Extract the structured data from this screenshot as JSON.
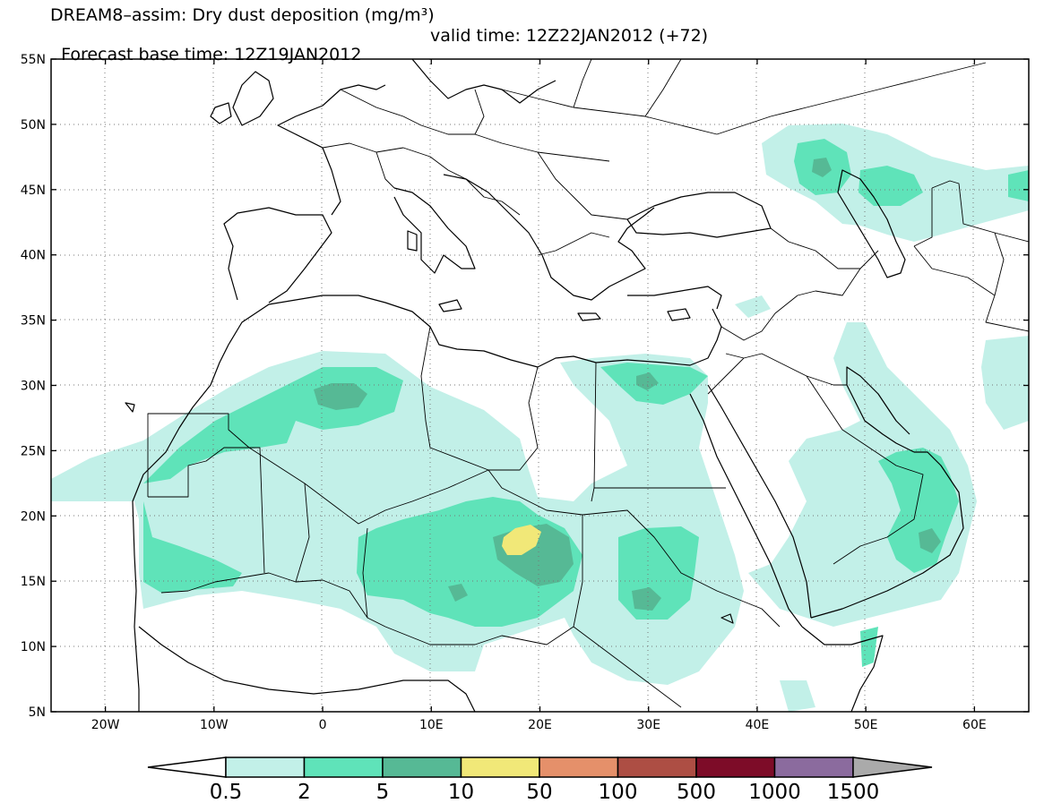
{
  "title": {
    "line1": "DREAM8–assim: Dry dust deposition (mg/m³)",
    "base_time": "Forecast base time: 12Z19JAN2012",
    "valid_time": "valid time: 12Z22JAN2012 (+72)"
  },
  "map": {
    "lon_range": [
      -25,
      65
    ],
    "lat_range": [
      5,
      55
    ],
    "lon_ticks": [
      {
        "value": -20,
        "label": "20W"
      },
      {
        "value": -10,
        "label": "10W"
      },
      {
        "value": 0,
        "label": "0"
      },
      {
        "value": 10,
        "label": "10E"
      },
      {
        "value": 20,
        "label": "20E"
      },
      {
        "value": 30,
        "label": "30E"
      },
      {
        "value": 40,
        "label": "40E"
      },
      {
        "value": 50,
        "label": "50E"
      },
      {
        "value": 60,
        "label": "60E"
      }
    ],
    "lat_ticks": [
      {
        "value": 55,
        "label": "55N"
      },
      {
        "value": 50,
        "label": "50N"
      },
      {
        "value": 45,
        "label": "45N"
      },
      {
        "value": 40,
        "label": "40N"
      },
      {
        "value": 35,
        "label": "35N"
      },
      {
        "value": 30,
        "label": "30N"
      },
      {
        "value": 25,
        "label": "25N"
      },
      {
        "value": 20,
        "label": "20N"
      },
      {
        "value": 15,
        "label": "15N"
      },
      {
        "value": 10,
        "label": "10N"
      },
      {
        "value": 5,
        "label": "5N"
      }
    ]
  },
  "colorbar": {
    "colors": [
      "#c2f0e8",
      "#5fe3b9",
      "#56b995",
      "#f1e878",
      "#e5906a",
      "#ad4e44",
      "#7d0c28",
      "#8b6b9e"
    ],
    "under_color": "#ffffff",
    "over_color": "#aaaaaa",
    "labels": [
      "0.5",
      "2",
      "5",
      "10",
      "50",
      "100",
      "500",
      "1000",
      "1500"
    ]
  }
}
